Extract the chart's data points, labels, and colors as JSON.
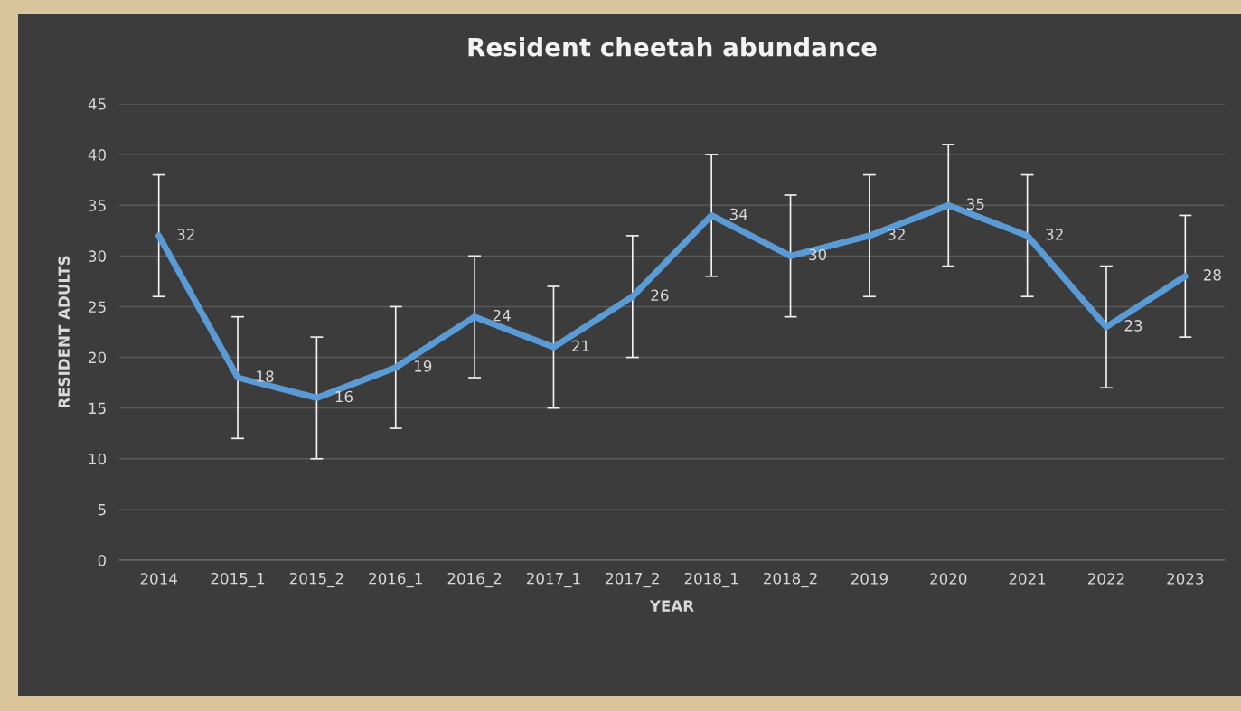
{
  "chart_data": {
    "type": "line",
    "title": "Resident cheetah abundance",
    "xlabel": "YEAR",
    "ylabel": "RESIDENT ADULTS",
    "categories": [
      "2014",
      "2015_1",
      "2015_2",
      "2016_1",
      "2016_2",
      "2017_1",
      "2017_2",
      "2018_1",
      "2018_2",
      "2019",
      "2020",
      "2021",
      "2022",
      "2023"
    ],
    "series": [
      {
        "color": "#5b9bd5",
        "values": [
          32,
          18,
          16,
          19,
          24,
          21,
          26,
          34,
          30,
          32,
          35,
          32,
          23,
          28
        ],
        "errors": [
          6,
          6,
          6,
          6,
          6,
          6,
          6,
          6,
          6,
          6,
          6,
          6,
          6,
          6
        ]
      }
    ],
    "ylim": [
      0,
      45
    ],
    "yticks": [
      0,
      5,
      10,
      15,
      20,
      25,
      30,
      35,
      40,
      45
    ],
    "grid": "y",
    "data_labels": true,
    "marker": "none",
    "line_style": "solid",
    "legend": false
  }
}
